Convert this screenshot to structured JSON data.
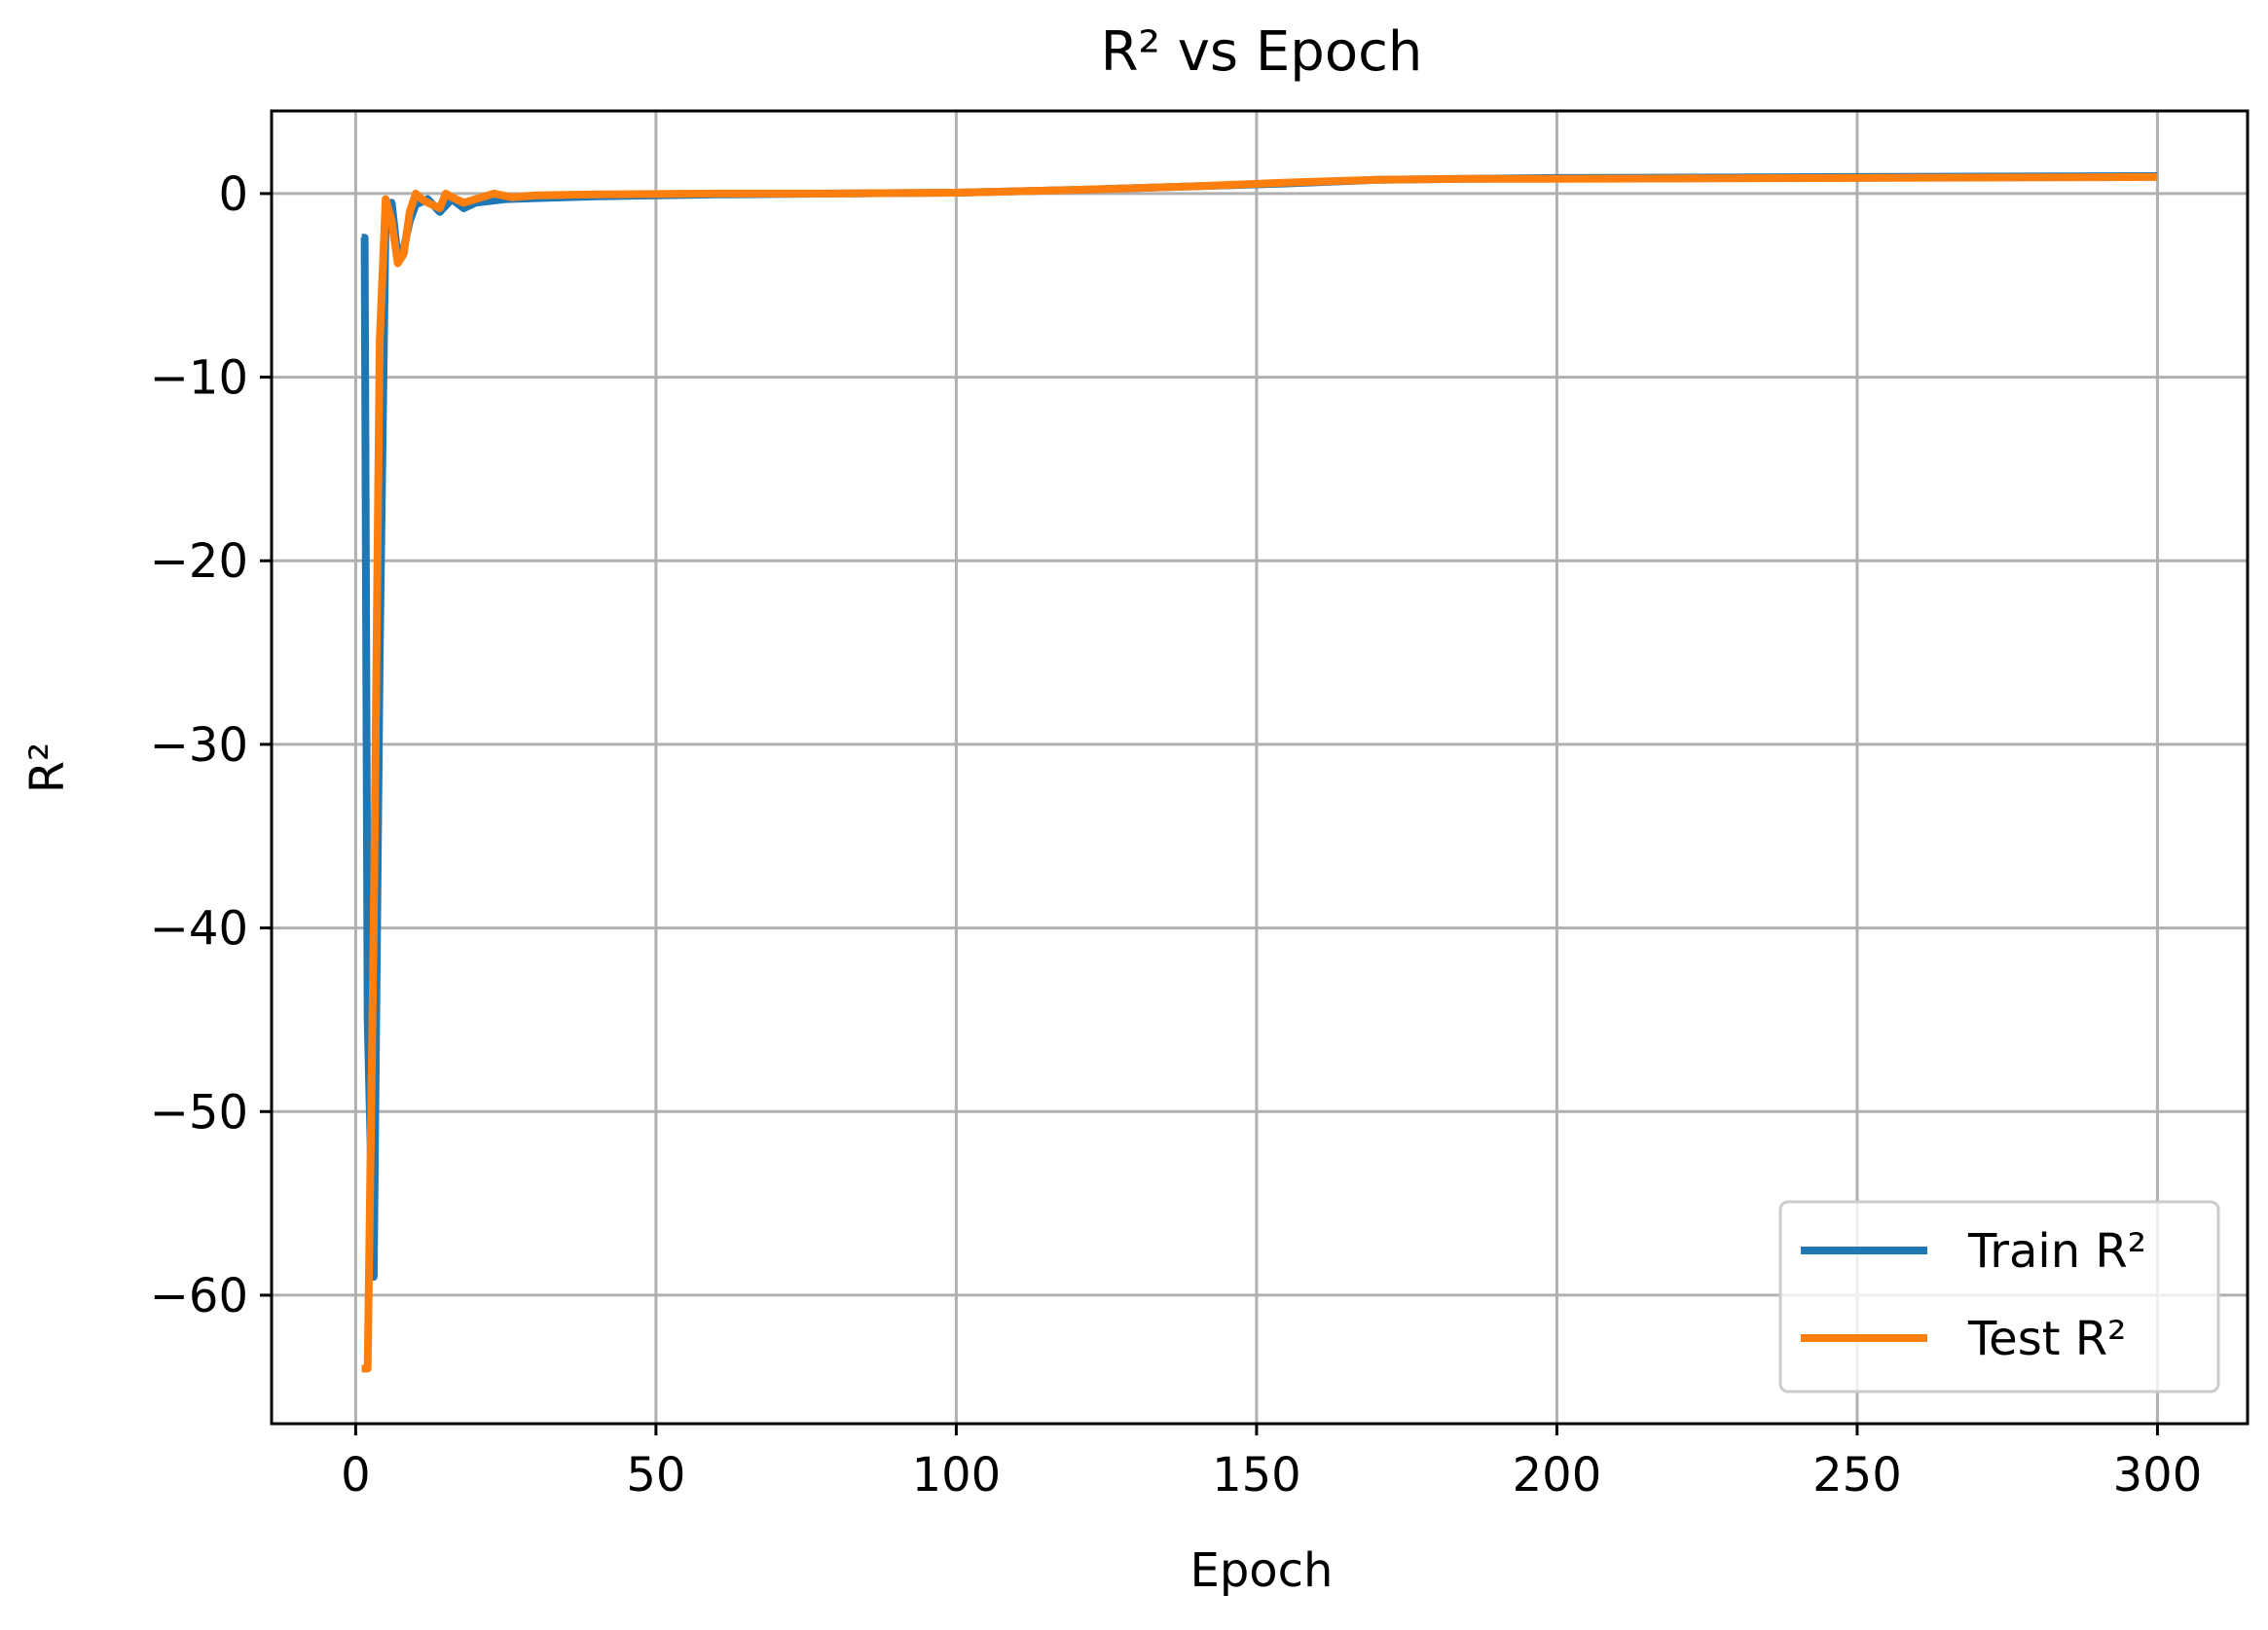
{
  "chart_data": {
    "type": "line",
    "title": "R² vs Epoch",
    "xlabel": "Epoch",
    "ylabel": "R²",
    "xlim": [
      -14,
      315
    ],
    "ylim": [
      -67,
      4.5
    ],
    "xticks": [
      0,
      50,
      100,
      150,
      200,
      250,
      300
    ],
    "yticks": [
      0,
      -10,
      -20,
      -30,
      -40,
      -50,
      -60
    ],
    "xtick_labels": [
      "0",
      "50",
      "100",
      "150",
      "200",
      "250",
      "300"
    ],
    "ytick_labels": [
      "0",
      "−10",
      "−20",
      "−30",
      "−40",
      "−50",
      "−60"
    ],
    "grid": true,
    "legend_position": "lower-right",
    "series": [
      {
        "name": "Train R²",
        "color": "#1f77b4",
        "points": [
          [
            1,
            -2.4
          ],
          [
            1.5,
            -2.4
          ],
          [
            2,
            -45
          ],
          [
            3,
            -59
          ],
          [
            4,
            -25
          ],
          [
            5,
            -1.0
          ],
          [
            6,
            -0.5
          ],
          [
            7,
            -3.5
          ],
          [
            8,
            -3.0
          ],
          [
            9,
            -1.5
          ],
          [
            10,
            -0.6
          ],
          [
            12,
            -0.3
          ],
          [
            14,
            -1.0
          ],
          [
            16,
            -0.3
          ],
          [
            18,
            -0.8
          ],
          [
            20,
            -0.5
          ],
          [
            25,
            -0.3
          ],
          [
            30,
            -0.25
          ],
          [
            40,
            -0.15
          ],
          [
            60,
            -0.05
          ],
          [
            80,
            0
          ],
          [
            100,
            0.05
          ],
          [
            120,
            0.2
          ],
          [
            140,
            0.4
          ],
          [
            155,
            0.55
          ],
          [
            170,
            0.75
          ],
          [
            185,
            0.8
          ],
          [
            200,
            0.85
          ],
          [
            250,
            0.9
          ],
          [
            300,
            0.95
          ]
        ]
      },
      {
        "name": "Test R²",
        "color": "#ff7f0e",
        "points": [
          [
            1,
            -64
          ],
          [
            2,
            -64
          ],
          [
            3,
            -40
          ],
          [
            4,
            -8
          ],
          [
            5,
            -0.3
          ],
          [
            6,
            -1.5
          ],
          [
            7,
            -3.8
          ],
          [
            8,
            -3.3
          ],
          [
            9,
            -1.0
          ],
          [
            10,
            0
          ],
          [
            11,
            -0.3
          ],
          [
            12,
            -0.5
          ],
          [
            14,
            -0.8
          ],
          [
            15,
            0
          ],
          [
            16,
            -0.2
          ],
          [
            18,
            -0.5
          ],
          [
            20,
            -0.3
          ],
          [
            23,
            0
          ],
          [
            26,
            -0.2
          ],
          [
            30,
            -0.1
          ],
          [
            40,
            -0.05
          ],
          [
            60,
            0
          ],
          [
            80,
            0
          ],
          [
            100,
            0.05
          ],
          [
            120,
            0.2
          ],
          [
            140,
            0.4
          ],
          [
            155,
            0.6
          ],
          [
            170,
            0.75
          ],
          [
            185,
            0.8
          ],
          [
            200,
            0.8
          ],
          [
            250,
            0.85
          ],
          [
            300,
            0.9
          ]
        ]
      }
    ]
  }
}
